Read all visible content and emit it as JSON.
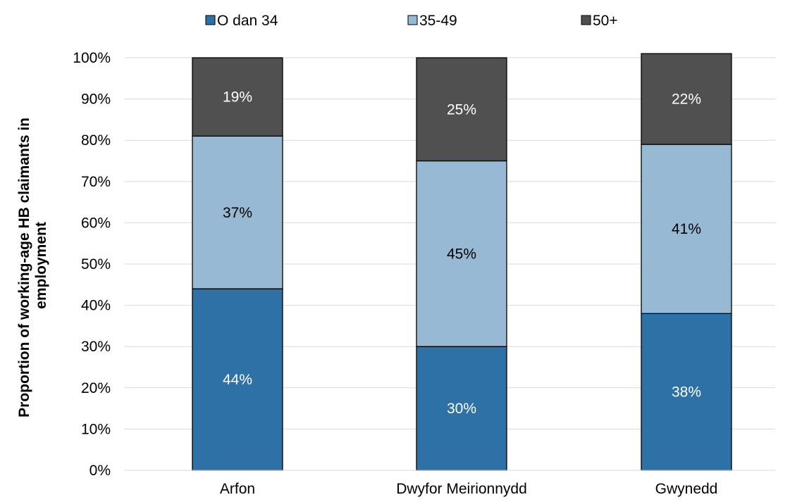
{
  "chart_data": {
    "type": "bar",
    "stacked": true,
    "title": "",
    "xlabel": "",
    "ylabel_lines": [
      "Proportion of working-age HB claimants in",
      "employment"
    ],
    "categories": [
      "Arfon",
      "Dwyfor Meirionnydd",
      "Gwynedd"
    ],
    "series": [
      {
        "name": "O dan 34",
        "color": "#2e71a6",
        "label_color": "#ffffff",
        "values": [
          44,
          30,
          38
        ],
        "labels": [
          "44%",
          "30%",
          "38%"
        ]
      },
      {
        "name": "35-49",
        "color": "#97b9d3",
        "label_color": "#000000",
        "values": [
          37,
          45,
          41
        ],
        "labels": [
          "37%",
          "45%",
          "41%"
        ]
      },
      {
        "name": "50+",
        "color": "#505050",
        "label_color": "#ffffff",
        "values": [
          19,
          25,
          22
        ],
        "labels": [
          "19%",
          "25%",
          "22%"
        ]
      }
    ],
    "ylim": [
      0,
      100
    ],
    "yticks": [
      "0%",
      "10%",
      "20%",
      "30%",
      "40%",
      "50%",
      "60%",
      "70%",
      "80%",
      "90%",
      "100%"
    ],
    "grid": true,
    "legend_position": "top"
  }
}
